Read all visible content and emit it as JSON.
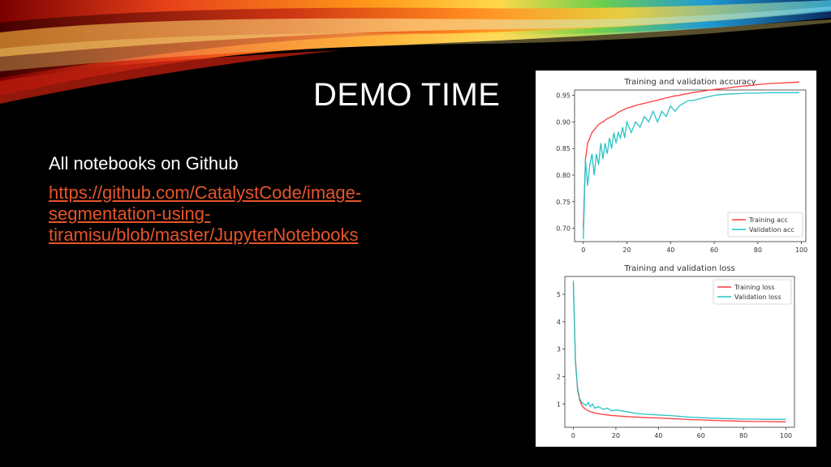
{
  "slide": {
    "title": "DEMO TIME",
    "body_line": "All notebooks on Github",
    "link_lines": [
      "https://github.com/CatalystCode/image-",
      "segmentation-using-",
      "tiramisu/blob/master/JupyterNotebooks"
    ],
    "link_color": "#e8542a"
  },
  "chart_data": [
    {
      "type": "line",
      "title": "Training and validation accuracy",
      "xlim": [
        -4,
        102
      ],
      "ylim": [
        0.675,
        0.96
      ],
      "xticks": [
        0,
        20,
        40,
        60,
        80,
        100
      ],
      "xtick_labels": [
        "0",
        "20",
        "40",
        "60",
        "80",
        "100"
      ],
      "yticks": [
        0.7,
        0.75,
        0.8,
        0.85,
        0.9,
        0.95
      ],
      "ytick_labels": [
        "0.70",
        "0.75",
        "0.80",
        "0.85",
        "0.90",
        "0.95"
      ],
      "legend_position": "lower-right",
      "x": [
        0,
        1,
        2,
        3,
        4,
        5,
        6,
        7,
        8,
        9,
        10,
        11,
        12,
        13,
        14,
        15,
        16,
        17,
        18,
        19,
        20,
        22,
        24,
        26,
        28,
        30,
        32,
        34,
        36,
        38,
        40,
        42,
        44,
        46,
        48,
        50,
        55,
        60,
        65,
        70,
        75,
        80,
        85,
        90,
        95,
        99
      ],
      "series": [
        {
          "name": "Training acc",
          "color": "#ff3b3b",
          "values": [
            0.7,
            0.83,
            0.86,
            0.87,
            0.88,
            0.885,
            0.89,
            0.895,
            0.898,
            0.9,
            0.903,
            0.906,
            0.908,
            0.91,
            0.912,
            0.915,
            0.918,
            0.92,
            0.922,
            0.924,
            0.926,
            0.928,
            0.931,
            0.933,
            0.935,
            0.937,
            0.939,
            0.941,
            0.943,
            0.945,
            0.947,
            0.949,
            0.95,
            0.952,
            0.953,
            0.955,
            0.958,
            0.961,
            0.963,
            0.966,
            0.968,
            0.97,
            0.972,
            0.973,
            0.974,
            0.975
          ]
        },
        {
          "name": "Validation acc",
          "color": "#27c4c4",
          "values": [
            0.68,
            0.83,
            0.78,
            0.82,
            0.84,
            0.8,
            0.84,
            0.82,
            0.86,
            0.83,
            0.86,
            0.84,
            0.87,
            0.85,
            0.88,
            0.86,
            0.88,
            0.87,
            0.89,
            0.87,
            0.9,
            0.88,
            0.9,
            0.89,
            0.91,
            0.9,
            0.92,
            0.9,
            0.92,
            0.91,
            0.93,
            0.92,
            0.93,
            0.935,
            0.94,
            0.94,
            0.945,
            0.95,
            0.952,
            0.953,
            0.954,
            0.954,
            0.955,
            0.955,
            0.955,
            0.955
          ]
        }
      ]
    },
    {
      "type": "line",
      "title": "Training and validation loss",
      "xlim": [
        -4,
        104
      ],
      "ylim": [
        0.15,
        5.65
      ],
      "xticks": [
        0,
        20,
        40,
        60,
        80,
        100
      ],
      "xtick_labels": [
        "0",
        "20",
        "40",
        "60",
        "80",
        "100"
      ],
      "yticks": [
        1,
        2,
        3,
        4,
        5
      ],
      "ytick_labels": [
        "1",
        "2",
        "3",
        "4",
        "5"
      ],
      "legend_position": "upper-right",
      "x": [
        0,
        1,
        2,
        3,
        4,
        5,
        6,
        7,
        8,
        9,
        10,
        12,
        14,
        16,
        18,
        20,
        25,
        30,
        35,
        40,
        45,
        50,
        55,
        60,
        65,
        70,
        75,
        80,
        85,
        90,
        95,
        100
      ],
      "series": [
        {
          "name": "Training loss",
          "color": "#ff3b3b",
          "values": [
            5.4,
            2.6,
            1.5,
            1.15,
            0.95,
            0.85,
            0.8,
            0.75,
            0.72,
            0.7,
            0.67,
            0.64,
            0.62,
            0.6,
            0.58,
            0.57,
            0.54,
            0.52,
            0.5,
            0.49,
            0.47,
            0.45,
            0.43,
            0.42,
            0.4,
            0.39,
            0.38,
            0.37,
            0.36,
            0.36,
            0.35,
            0.35
          ]
        },
        {
          "name": "Validation loss",
          "color": "#27c4c4",
          "values": [
            5.5,
            2.5,
            1.6,
            1.2,
            1.05,
            1.0,
            0.95,
            1.05,
            0.9,
            1.0,
            0.85,
            0.9,
            0.8,
            0.85,
            0.75,
            0.78,
            0.72,
            0.65,
            0.62,
            0.6,
            0.58,
            0.55,
            0.52,
            0.5,
            0.48,
            0.47,
            0.46,
            0.45,
            0.45,
            0.44,
            0.44,
            0.44
          ]
        }
      ]
    }
  ]
}
